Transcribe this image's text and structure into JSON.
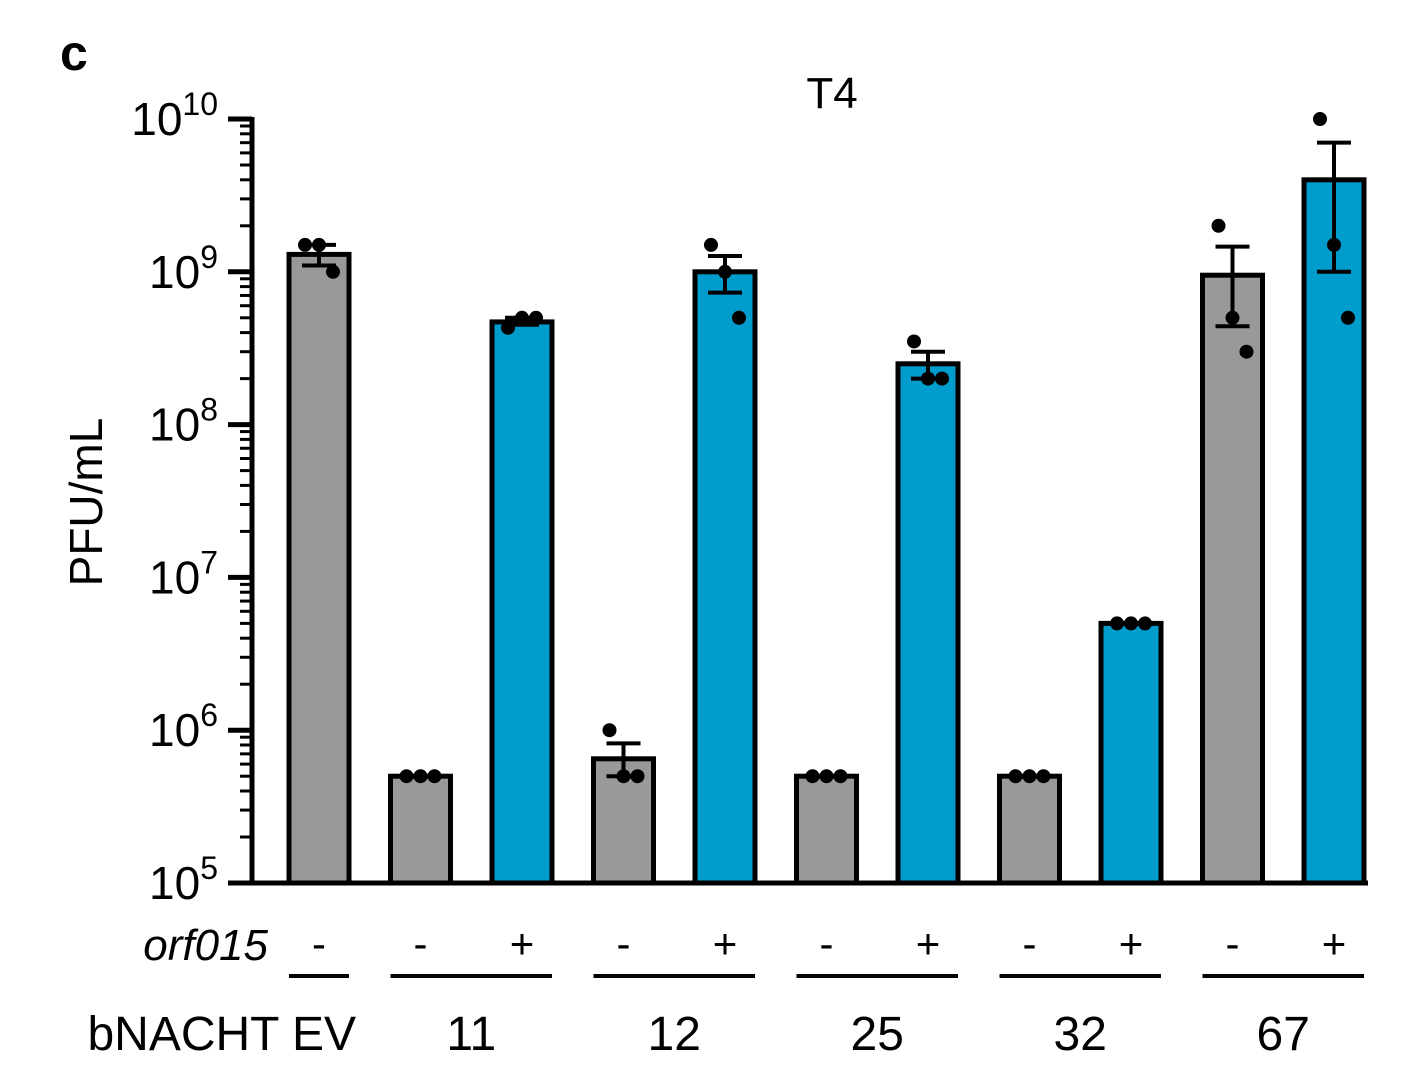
{
  "panel_label": "c",
  "chart_data": {
    "type": "bar",
    "title": "T4",
    "ylabel": "PFU/mL",
    "yscale": "log",
    "ylim": [
      100000,
      10000000000
    ],
    "y_tick_base": "10",
    "y_tick_exponents": [
      "5",
      "6",
      "7",
      "8",
      "9",
      "10"
    ],
    "row_labels": {
      "orf015": "orf015",
      "bnacht": "bNACHT"
    },
    "groups": [
      {
        "label": "EV",
        "bars": [
          0
        ]
      },
      {
        "label": "11",
        "bars": [
          1,
          2
        ]
      },
      {
        "label": "12",
        "bars": [
          3,
          4
        ]
      },
      {
        "label": "25",
        "bars": [
          5,
          6
        ]
      },
      {
        "label": "32",
        "bars": [
          7,
          8
        ]
      },
      {
        "label": "67",
        "bars": [
          9,
          10
        ]
      }
    ],
    "bars": [
      {
        "orf015": "-",
        "value": 1300000000,
        "err_low": 1100000000,
        "err_high": 1500000000,
        "points": [
          1500000000,
          1500000000,
          1000000000
        ],
        "color": "#999999"
      },
      {
        "orf015": "-",
        "value": 500000,
        "err_low": 500000,
        "err_high": 500000,
        "points": [
          500000,
          500000,
          500000
        ],
        "color": "#999999"
      },
      {
        "orf015": "+",
        "value": 470000000,
        "err_low": 450000000,
        "err_high": 500000000,
        "points": [
          430000000,
          500000000,
          500000000
        ],
        "color": "#009ccc"
      },
      {
        "orf015": "-",
        "value": 650000,
        "err_low": 500000,
        "err_high": 820000,
        "points": [
          1000000,
          500000,
          500000
        ],
        "color": "#999999"
      },
      {
        "orf015": "+",
        "value": 1000000000,
        "err_low": 730000000,
        "err_high": 1270000000,
        "points": [
          1500000000,
          1000000000,
          500000000
        ],
        "color": "#009ccc"
      },
      {
        "orf015": "-",
        "value": 500000,
        "err_low": 500000,
        "err_high": 500000,
        "points": [
          500000,
          500000,
          500000
        ],
        "color": "#999999"
      },
      {
        "orf015": "+",
        "value": 250000000,
        "err_low": 200000000,
        "err_high": 300000000,
        "points": [
          350000000,
          200000000,
          200000000
        ],
        "color": "#009ccc"
      },
      {
        "orf015": "-",
        "value": 500000,
        "err_low": 500000,
        "err_high": 500000,
        "points": [
          500000,
          500000,
          500000
        ],
        "color": "#999999"
      },
      {
        "orf015": "+",
        "value": 5000000,
        "err_low": 5000000,
        "err_high": 5000000,
        "points": [
          5000000,
          5000000,
          5000000
        ],
        "color": "#009ccc"
      },
      {
        "orf015": "-",
        "value": 950000000,
        "err_low": 440000000,
        "err_high": 1460000000,
        "points": [
          2000000000,
          500000000,
          300000000
        ],
        "color": "#999999"
      },
      {
        "orf015": "+",
        "value": 4000000000,
        "err_low": 1000000000,
        "err_high": 7000000000,
        "points": [
          10000000000,
          1500000000,
          500000000
        ],
        "color": "#009ccc"
      }
    ]
  }
}
